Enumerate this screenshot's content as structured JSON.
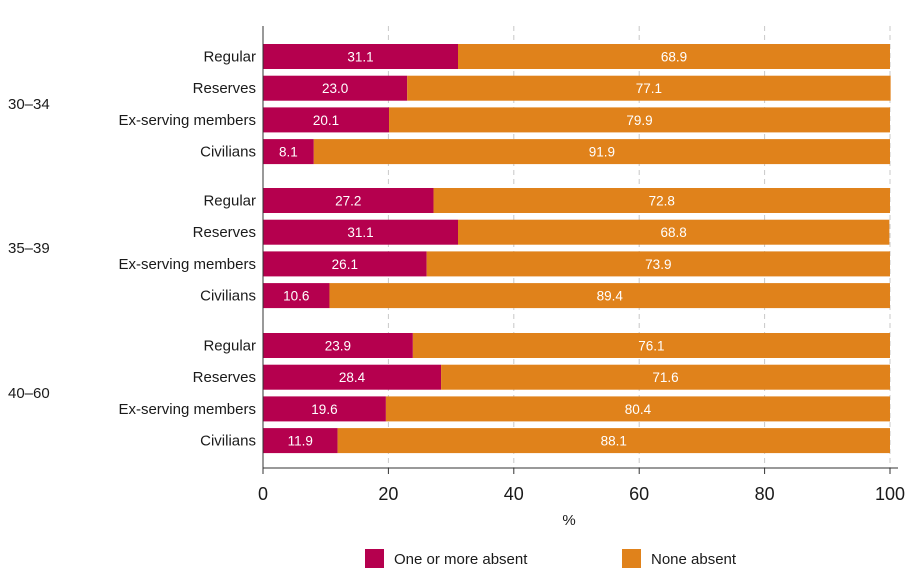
{
  "chart_data": {
    "type": "bar",
    "orientation": "horizontal",
    "stacked": true,
    "xlabel": "%",
    "xlim": [
      0,
      100
    ],
    "xticks": [
      0,
      20,
      40,
      60,
      80,
      100
    ],
    "grid": true,
    "legend_position": "bottom",
    "groups": [
      {
        "label": "30–34",
        "categories": [
          "Regular",
          "Reserves",
          "Ex-serving members",
          "Civilians"
        ],
        "one_or_more_absent": [
          31.1,
          23.0,
          20.1,
          8.1
        ],
        "none_absent": [
          68.9,
          77.1,
          79.9,
          91.9
        ],
        "one_or_more_absent_labels": [
          "31.1",
          "23.0",
          "20.1",
          "8.1"
        ],
        "none_absent_labels": [
          "68.9",
          "77.1",
          "79.9",
          "91.9"
        ]
      },
      {
        "label": "35–39",
        "categories": [
          "Regular",
          "Reserves",
          "Ex-serving members",
          "Civilians"
        ],
        "one_or_more_absent": [
          27.2,
          31.1,
          26.1,
          10.6
        ],
        "none_absent": [
          72.8,
          68.8,
          73.9,
          89.4
        ],
        "one_or_more_absent_labels": [
          "27.2",
          "31.1",
          "26.1",
          "10.6"
        ],
        "none_absent_labels": [
          "72.8",
          "68.8",
          "73.9",
          "89.4"
        ]
      },
      {
        "label": "40–60",
        "categories": [
          "Regular",
          "Reserves",
          "Ex-serving members",
          "Civilians"
        ],
        "one_or_more_absent": [
          23.9,
          28.4,
          19.6,
          11.9
        ],
        "none_absent": [
          76.1,
          71.6,
          80.4,
          88.1
        ],
        "one_or_more_absent_labels": [
          "23.9",
          "28.4",
          "19.6",
          "11.9"
        ],
        "none_absent_labels": [
          "76.1",
          "71.6",
          "80.4",
          "88.1"
        ]
      }
    ],
    "series": [
      {
        "name": "One or more absent",
        "color": "#b5004e"
      },
      {
        "name": "None absent",
        "color": "#e0821b"
      }
    ]
  }
}
